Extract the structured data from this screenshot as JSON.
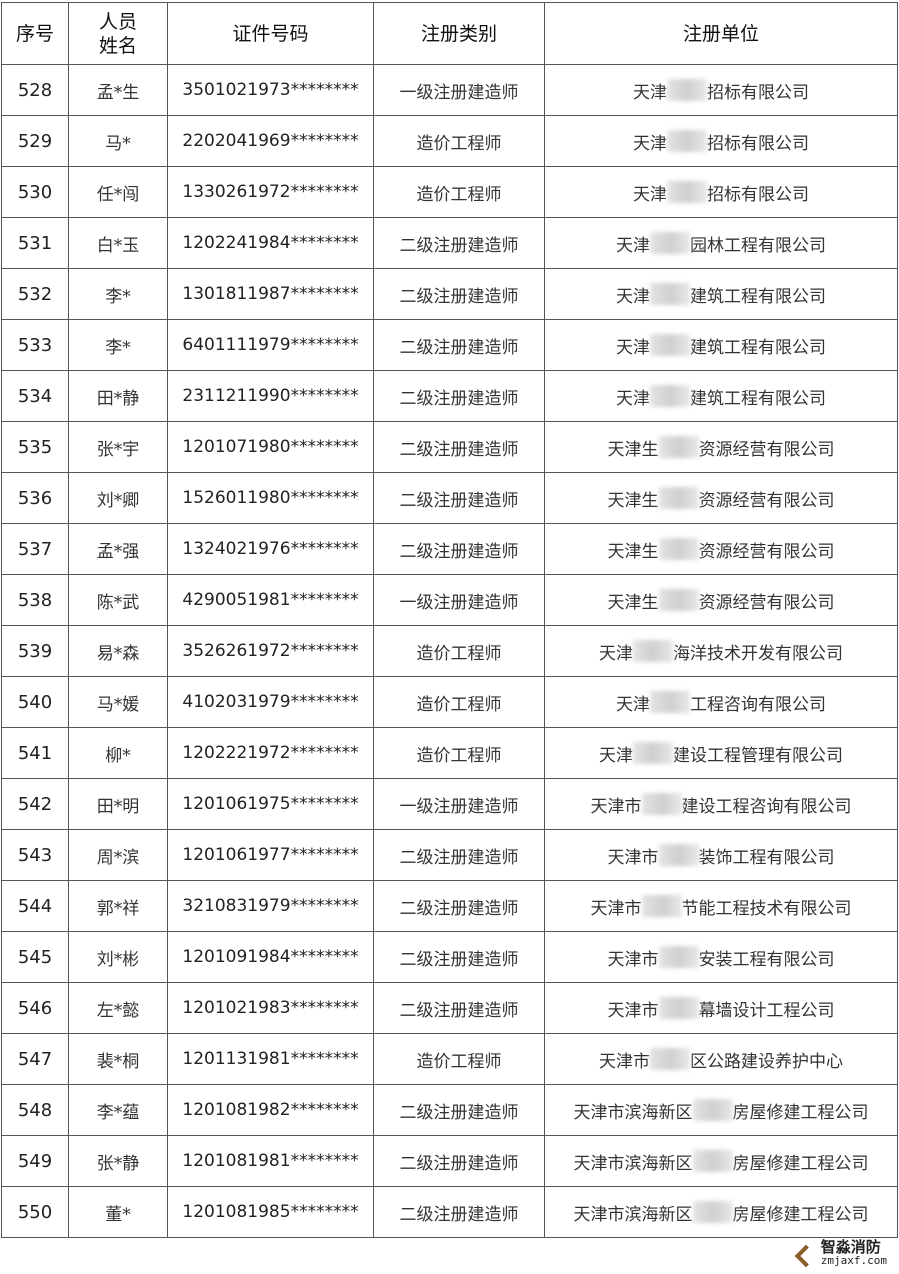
{
  "headers": [
    "序号",
    "人员\n姓名",
    "证件号码",
    "注册类别",
    "注册单位"
  ],
  "header_name_lines": [
    "人员",
    "姓名"
  ],
  "rows": [
    {
      "seq": "528",
      "name": "孟*生",
      "id": "3501021973********",
      "type": "一级注册建造师",
      "unit_pre": "天津",
      "unit_post": "招标有限公司"
    },
    {
      "seq": "529",
      "name": "马*",
      "id": "2202041969********",
      "type": "造价工程师",
      "unit_pre": "天津",
      "unit_post": "招标有限公司"
    },
    {
      "seq": "530",
      "name": "任*闯",
      "id": "1330261972********",
      "type": "造价工程师",
      "unit_pre": "天津",
      "unit_post": "招标有限公司"
    },
    {
      "seq": "531",
      "name": "白*玉",
      "id": "1202241984********",
      "type": "二级注册建造师",
      "unit_pre": "天津",
      "unit_post": "园林工程有限公司"
    },
    {
      "seq": "532",
      "name": "李*",
      "id": "1301811987********",
      "type": "二级注册建造师",
      "unit_pre": "天津",
      "unit_post": "建筑工程有限公司"
    },
    {
      "seq": "533",
      "name": "李*",
      "id": "6401111979********",
      "type": "二级注册建造师",
      "unit_pre": "天津",
      "unit_post": "建筑工程有限公司"
    },
    {
      "seq": "534",
      "name": "田*静",
      "id": "2311211990********",
      "type": "二级注册建造师",
      "unit_pre": "天津",
      "unit_post": "建筑工程有限公司"
    },
    {
      "seq": "535",
      "name": "张*宇",
      "id": "1201071980********",
      "type": "二级注册建造师",
      "unit_pre": "天津生",
      "unit_post": "资源经营有限公司"
    },
    {
      "seq": "536",
      "name": "刘*卿",
      "id": "1526011980********",
      "type": "二级注册建造师",
      "unit_pre": "天津生",
      "unit_post": "资源经营有限公司"
    },
    {
      "seq": "537",
      "name": "孟*强",
      "id": "1324021976********",
      "type": "二级注册建造师",
      "unit_pre": "天津生",
      "unit_post": "资源经营有限公司"
    },
    {
      "seq": "538",
      "name": "陈*武",
      "id": "4290051981********",
      "type": "一级注册建造师",
      "unit_pre": "天津生",
      "unit_post": "资源经营有限公司"
    },
    {
      "seq": "539",
      "name": "易*森",
      "id": "3526261972********",
      "type": "造价工程师",
      "unit_pre": "天津",
      "unit_post": "海洋技术开发有限公司"
    },
    {
      "seq": "540",
      "name": "马*媛",
      "id": "4102031979********",
      "type": "造价工程师",
      "unit_pre": "天津",
      "unit_post": "工程咨询有限公司"
    },
    {
      "seq": "541",
      "name": "柳*",
      "id": "1202221972********",
      "type": "造价工程师",
      "unit_pre": "天津",
      "unit_post": "建设工程管理有限公司"
    },
    {
      "seq": "542",
      "name": "田*明",
      "id": "1201061975********",
      "type": "一级注册建造师",
      "unit_pre": "天津市",
      "unit_post": "建设工程咨询有限公司"
    },
    {
      "seq": "543",
      "name": "周*滨",
      "id": "1201061977********",
      "type": "二级注册建造师",
      "unit_pre": "天津市",
      "unit_post": "装饰工程有限公司"
    },
    {
      "seq": "544",
      "name": "郭*祥",
      "id": "3210831979********",
      "type": "二级注册建造师",
      "unit_pre": "天津市",
      "unit_post": "节能工程技术有限公司"
    },
    {
      "seq": "545",
      "name": "刘*彬",
      "id": "1201091984********",
      "type": "二级注册建造师",
      "unit_pre": "天津市",
      "unit_post": "安装工程有限公司"
    },
    {
      "seq": "546",
      "name": "左*懿",
      "id": "1201021983********",
      "type": "二级注册建造师",
      "unit_pre": "天津市",
      "unit_post": "幕墙设计工程公司"
    },
    {
      "seq": "547",
      "name": "裴*桐",
      "id": "1201131981********",
      "type": "造价工程师",
      "unit_pre": "天津市",
      "unit_post": "区公路建设养护中心"
    },
    {
      "seq": "548",
      "name": "李*蕴",
      "id": "1201081982********",
      "type": "二级注册建造师",
      "unit_pre": "天津市滨海新区",
      "unit_post": "房屋修建工程公司"
    },
    {
      "seq": "549",
      "name": "张*静",
      "id": "1201081981********",
      "type": "二级注册建造师",
      "unit_pre": "天津市滨海新区",
      "unit_post": "房屋修建工程公司"
    },
    {
      "seq": "550",
      "name": "董*",
      "id": "1201081985********",
      "type": "二级注册建造师",
      "unit_pre": "天津市滨海新区",
      "unit_post": "房屋修建工程公司"
    }
  ],
  "watermark": {
    "cn": "智淼消防",
    "en": "zmjaxf.com",
    "color": "#8a5a2b"
  }
}
